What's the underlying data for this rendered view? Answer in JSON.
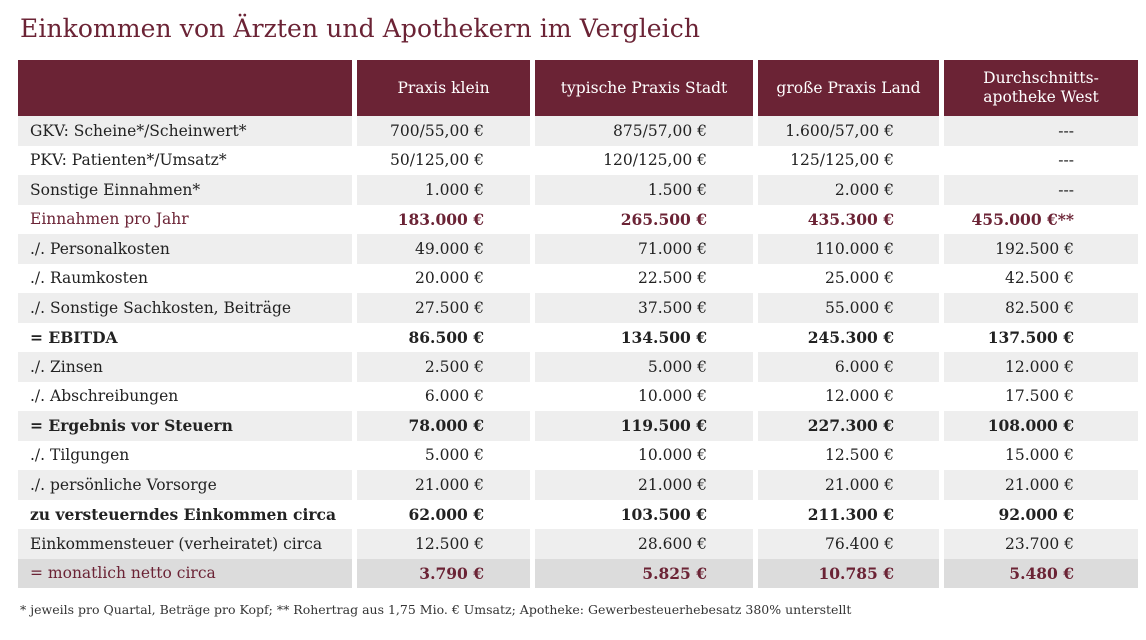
{
  "title": "Einkommen von Ärzten und Apothekern im Vergleich",
  "headers": [
    "",
    "Praxis klein",
    "typische Praxis Stadt",
    "große Praxis Land",
    "Durchschnitts-\napotheke West"
  ],
  "rows": [
    {
      "label": "GKV: Scheine*/Scheinwert*",
      "values": [
        "700/55,00 €",
        "875/57,00 €",
        "1.600/57,00 €",
        "---"
      ],
      "style": "normal"
    },
    {
      "label": "PKV: Patienten*/Umsatz*",
      "values": [
        "50/125,00 €",
        "120/125,00 €",
        "125/125,00 €",
        "---"
      ],
      "style": "normal"
    },
    {
      "label": "Sonstige Einnahmen*",
      "values": [
        "1.000 €",
        "1.500 €",
        "2.000 €",
        "---"
      ],
      "style": "normal"
    },
    {
      "label": "Einnahmen pro Jahr",
      "values": [
        "183.000 €",
        "265.500 €",
        "435.300 €",
        "455.000 €**"
      ],
      "style": "accent"
    },
    {
      "label": "./. Personalkosten",
      "values": [
        "49.000 €",
        "71.000 €",
        "110.000 €",
        "192.500 €"
      ],
      "style": "normal"
    },
    {
      "label": "./. Raumkosten",
      "values": [
        "20.000 €",
        "22.500 €",
        "25.000 €",
        "42.500 €"
      ],
      "style": "normal"
    },
    {
      "label": "./. Sonstige Sachkosten, Beiträge",
      "values": [
        "27.500 €",
        "37.500 €",
        "55.000 €",
        "82.500 €"
      ],
      "style": "normal"
    },
    {
      "label": "= EBITDA",
      "values": [
        "86.500 €",
        "134.500 €",
        "245.300 €",
        "137.500 €"
      ],
      "style": "bold"
    },
    {
      "label": "./. Zinsen",
      "values": [
        "2.500 €",
        "5.000 €",
        "6.000 €",
        "12.000 €"
      ],
      "style": "normal"
    },
    {
      "label": "./. Abschreibungen",
      "values": [
        "6.000 €",
        "10.000 €",
        "12.000 €",
        "17.500 €"
      ],
      "style": "normal"
    },
    {
      "label": "= Ergebnis vor Steuern",
      "values": [
        "78.000 €",
        "119.500 €",
        "227.300 €",
        "108.000 €"
      ],
      "style": "bold"
    },
    {
      "label": "./. Tilgungen",
      "values": [
        "5.000 €",
        "10.000 €",
        "12.500 €",
        "15.000 €"
      ],
      "style": "normal"
    },
    {
      "label": "./. persönliche Vorsorge",
      "values": [
        "21.000 €",
        "21.000 €",
        "21.000 €",
        "21.000 €"
      ],
      "style": "normal"
    },
    {
      "label": "zu versteuerndes Einkommen circa",
      "values": [
        "62.000 €",
        "103.500 €",
        "211.300 €",
        "92.000 €"
      ],
      "style": "bold"
    },
    {
      "label": "Einkommensteuer (verheiratet) circa",
      "values": [
        "12.500 €",
        "28.600 €",
        "76.400 €",
        "23.700 €"
      ],
      "style": "normal"
    },
    {
      "label": "= monatlich netto circa",
      "values": [
        "3.790 €",
        "5.825 €",
        "10.785 €",
        "5.480 €"
      ],
      "style": "accent"
    }
  ],
  "footnote": "* jeweils pro Quartal, Beträge pro Kopf;  ** Rohertrag aus 1,75 Mio. € Umsatz;  Apotheke: Gewerbesteuerhebesatz 380% unterstellt",
  "colors": {
    "accent": "#6b2335",
    "row_alt": "#eeeeee",
    "row_last": "#dcdcdc"
  }
}
